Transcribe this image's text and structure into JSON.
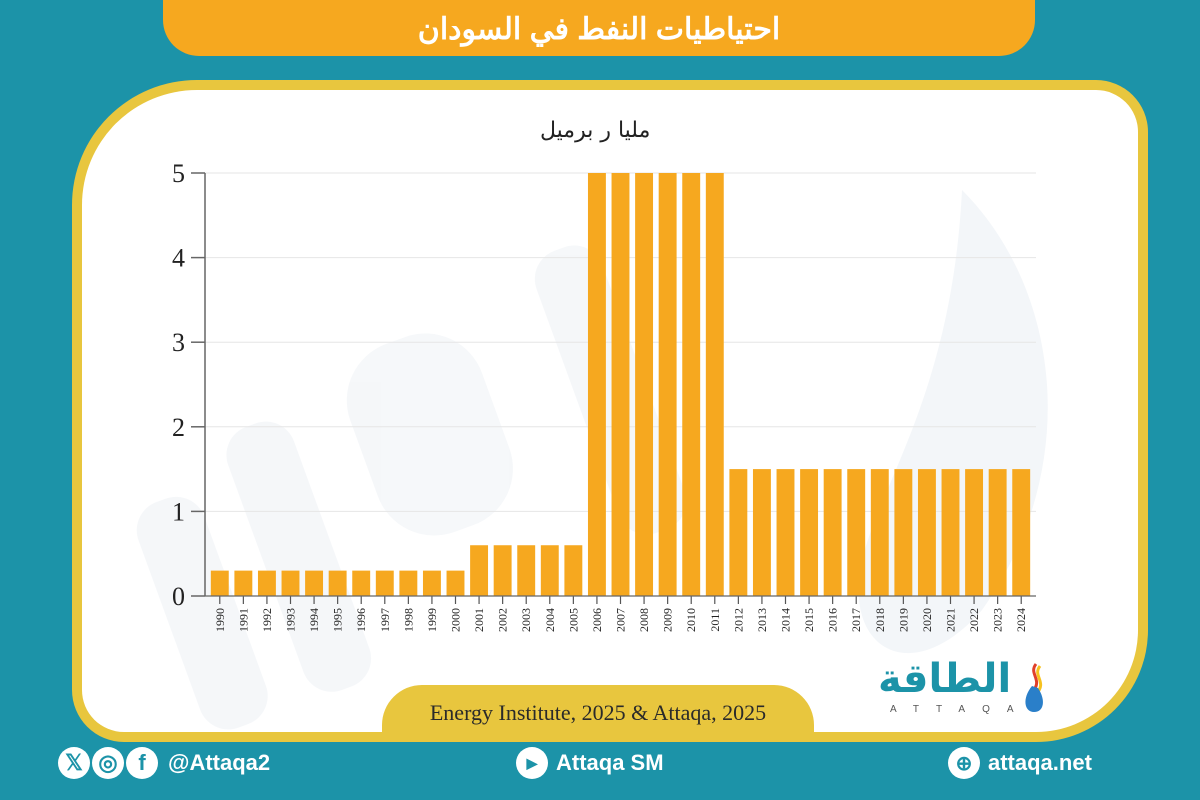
{
  "header": {
    "title": "احتياطيات النفط في السودان"
  },
  "chart_data": {
    "type": "bar",
    "title": "احتياطيات النفط في السودان",
    "ylabel": "مليا ر برميل",
    "xlabel": "",
    "ylim": [
      0,
      5
    ],
    "yticks": [
      0,
      1,
      2,
      3,
      4,
      5
    ],
    "grid": true,
    "bar_color": "#f6a81f",
    "categories": [
      "1990",
      "1991",
      "1992",
      "1993",
      "1994",
      "1995",
      "1996",
      "1997",
      "1998",
      "1999",
      "2000",
      "2001",
      "2002",
      "2003",
      "2004",
      "2005",
      "2006",
      "2007",
      "2008",
      "2009",
      "2010",
      "2011",
      "2012",
      "2013",
      "2014",
      "2015",
      "2016",
      "2017",
      "2018",
      "2019",
      "2020",
      "2021",
      "2022",
      "2023",
      "2024"
    ],
    "values": [
      0.3,
      0.3,
      0.3,
      0.3,
      0.3,
      0.3,
      0.3,
      0.3,
      0.3,
      0.3,
      0.3,
      0.6,
      0.6,
      0.6,
      0.6,
      0.6,
      5,
      5,
      5,
      5,
      5,
      5,
      1.5,
      1.5,
      1.5,
      1.5,
      1.5,
      1.5,
      1.5,
      1.5,
      1.5,
      1.5,
      1.5,
      1.5,
      1.5
    ]
  },
  "source": {
    "text": "Energy Institute, 2025 & Attaqa, 2025"
  },
  "logo": {
    "arabic": "الطاقة",
    "latin": "ATTAQA"
  },
  "footer": {
    "social_handle": "@Attaqa2",
    "youtube": "Attaqa SM",
    "website": "attaqa.net",
    "icons": [
      "x-icon",
      "instagram-icon",
      "facebook-icon",
      "youtube-icon",
      "globe-icon"
    ]
  },
  "colors": {
    "background": "#1c93a8",
    "accent": "#f6a81f",
    "frame": "#e8c63e"
  }
}
